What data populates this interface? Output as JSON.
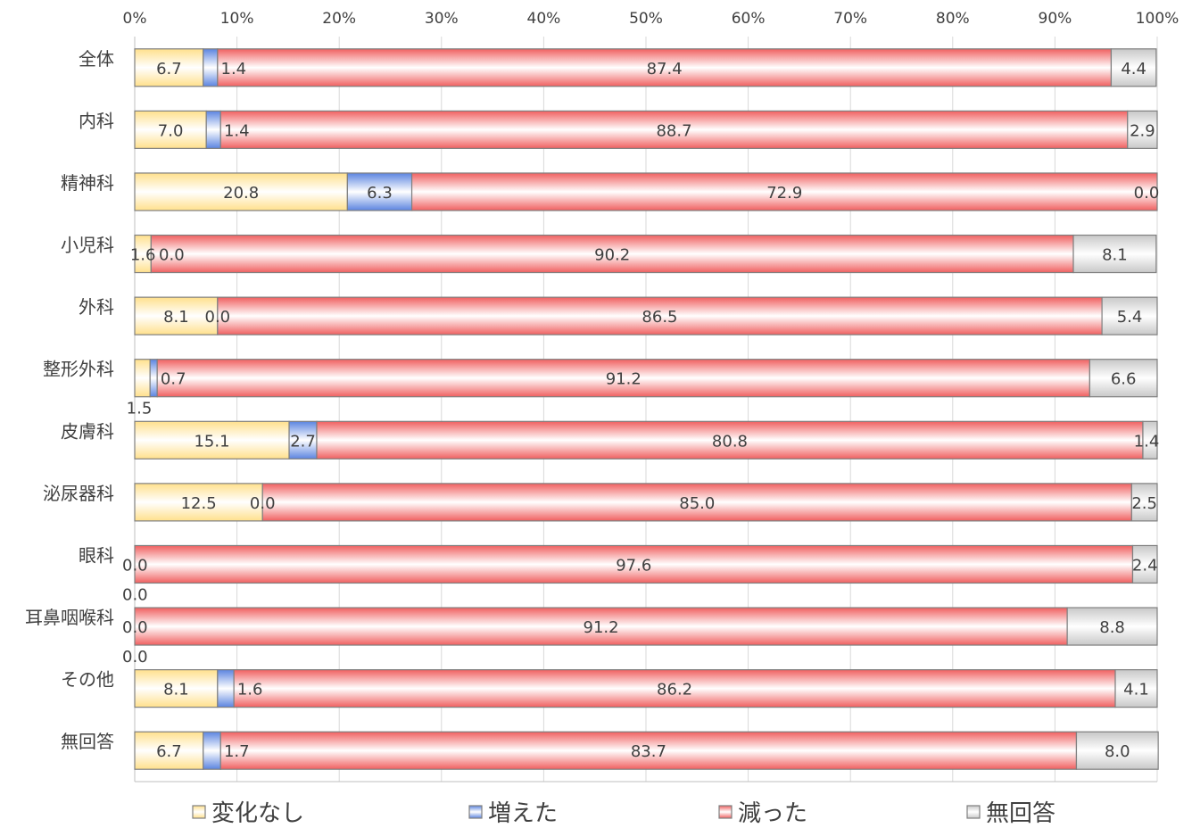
{
  "chart_data": {
    "type": "bar",
    "orientation": "horizontal",
    "stacked": "percent",
    "x_ticks": [
      "0%",
      "10%",
      "20%",
      "30%",
      "40%",
      "50%",
      "60%",
      "70%",
      "80%",
      "90%",
      "100%"
    ],
    "xlim": [
      0,
      100
    ],
    "grid": true,
    "legend_position": "bottom",
    "categories": [
      "全体",
      "内科",
      "精神科",
      "小児科",
      "外科",
      "整形外科",
      "皮膚科",
      "泌尿器科",
      "眼科",
      "耳鼻咽喉科",
      "その他",
      "無回答"
    ],
    "series": [
      {
        "name": "変化なし",
        "color": "#FFE08C",
        "values": [
          6.7,
          7.0,
          20.8,
          1.6,
          8.1,
          1.5,
          15.1,
          12.5,
          0.0,
          0.0,
          8.1,
          6.7
        ]
      },
      {
        "name": "増えた",
        "color": "#5B84E0",
        "values": [
          1.4,
          1.4,
          6.3,
          0.0,
          0.0,
          0.7,
          2.7,
          0.0,
          0.0,
          0.0,
          1.6,
          1.7
        ]
      },
      {
        "name": "減った",
        "color": "#F06060",
        "values": [
          87.4,
          88.7,
          72.9,
          90.2,
          86.5,
          91.2,
          80.8,
          85.0,
          97.6,
          91.2,
          86.2,
          83.7
        ]
      },
      {
        "name": "無回答",
        "color": "#C8C8C8",
        "values": [
          4.4,
          2.9,
          0.0,
          8.1,
          5.4,
          6.6,
          1.4,
          2.5,
          2.4,
          8.8,
          4.1,
          8.0
        ]
      }
    ],
    "value_labels": [
      [
        "6.7",
        "1.4",
        "87.4",
        "4.4"
      ],
      [
        "7.0",
        "1.4",
        "88.7",
        "2.9"
      ],
      [
        "20.8",
        "6.3",
        "72.9",
        "0.0"
      ],
      [
        "1.6",
        "0.0",
        "90.2",
        "8.1"
      ],
      [
        "8.1",
        "0.0",
        "86.5",
        "5.4"
      ],
      [
        "1.5",
        "0.7",
        "91.2",
        "6.6"
      ],
      [
        "15.1",
        "2.7",
        "80.8",
        "1.4"
      ],
      [
        "12.5",
        "0.0",
        "85.0",
        "2.5"
      ],
      [
        "0.0",
        "0.0",
        "97.6",
        "2.4"
      ],
      [
        "0.0",
        "0.0",
        "91.2",
        "8.8"
      ],
      [
        "8.1",
        "1.6",
        "86.2",
        "4.1"
      ],
      [
        "6.7",
        "1.7",
        "83.7",
        "8.0"
      ]
    ]
  }
}
